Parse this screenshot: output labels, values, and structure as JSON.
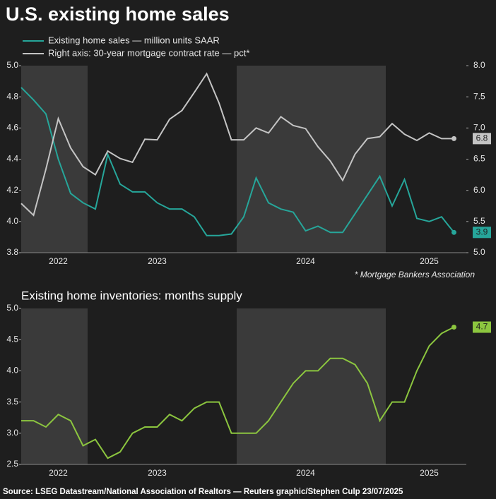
{
  "title": "U.S. existing home sales",
  "source": "Source: LSEG Datastream/National Association of Realtors  — Reuters graphic/Stephen Culp 23/07/2025",
  "chart_data": [
    {
      "type": "line",
      "legend": "top-left",
      "note": "* Mortgage Bankers Association",
      "categories": [
        null,
        null,
        null,
        "2022",
        null,
        null,
        null,
        null,
        null,
        null,
        null,
        "2023",
        null,
        null,
        null,
        null,
        null,
        null,
        null,
        null,
        null,
        null,
        null,
        "2024",
        null,
        null,
        null,
        null,
        null,
        null,
        null,
        null,
        null,
        "2025",
        null,
        null
      ],
      "ylim": [
        3.8,
        5.0
      ],
      "yticks": [
        3.8,
        {
          "value": 4,
          "label": "4.0"
        },
        4.2,
        4.4,
        4.6,
        4.8,
        {
          "value": 5,
          "label": "5.0"
        }
      ],
      "y2lim": [
        5,
        8
      ],
      "y2ticks": [
        {
          "value": 5,
          "label": "5.0"
        },
        5.5,
        {
          "value": 6,
          "label": "6.0"
        },
        6.5,
        {
          "value": 7,
          "label": "7.0"
        },
        7.5,
        {
          "value": 8,
          "label": "8.0"
        }
      ],
      "series": [
        {
          "name": "Existing home sales — million units SAAR",
          "color": "#26a69a",
          "values": [
            4.86,
            4.78,
            4.69,
            4.4,
            4.18,
            4.12,
            4.08,
            4.43,
            4.24,
            4.19,
            4.19,
            4.12,
            4.08,
            4.08,
            4.03,
            3.91,
            3.91,
            3.92,
            4.03,
            4.28,
            4.12,
            4.08,
            4.06,
            3.94,
            3.97,
            3.93,
            3.93,
            4.05,
            4.17,
            4.29,
            4.1,
            4.27,
            4.02,
            4.0,
            4.03,
            3.93
          ],
          "value_labels": [
            null,
            null,
            null,
            null,
            null,
            null,
            null,
            null,
            null,
            null,
            null,
            null,
            null,
            null,
            null,
            null,
            null,
            null,
            null,
            null,
            null,
            null,
            null,
            null,
            null,
            null,
            null,
            null,
            null,
            null,
            null,
            null,
            null,
            null,
            null,
            "3.9"
          ]
        },
        {
          "name": "Right axis: 30-year mortgage contract rate — pct*",
          "color": "#c4c4c4",
          "axis": "y2",
          "values": [
            5.79,
            5.6,
            6.34,
            7.15,
            6.68,
            6.38,
            6.25,
            6.63,
            6.51,
            6.45,
            6.82,
            6.81,
            7.14,
            7.28,
            7.57,
            7.87,
            7.4,
            6.81,
            6.81,
            7.0,
            6.92,
            7.18,
            7.04,
            6.99,
            6.7,
            6.47,
            6.16,
            6.58,
            6.83,
            6.86,
            7.07,
            6.9,
            6.8,
            6.92,
            6.83,
            6.83
          ],
          "value_labels": [
            null,
            null,
            null,
            null,
            null,
            null,
            null,
            null,
            null,
            null,
            null,
            null,
            null,
            null,
            null,
            null,
            null,
            null,
            null,
            null,
            null,
            null,
            null,
            null,
            null,
            null,
            null,
            null,
            null,
            null,
            null,
            null,
            null,
            null,
            null,
            "6.8"
          ]
        }
      ]
    },
    {
      "type": "line",
      "title": "Existing home inventories: months supply",
      "categories": [
        null,
        null,
        null,
        "2022",
        null,
        null,
        null,
        null,
        null,
        null,
        null,
        "2023",
        null,
        null,
        null,
        null,
        null,
        null,
        null,
        null,
        null,
        null,
        null,
        "2024",
        null,
        null,
        null,
        null,
        null,
        null,
        null,
        null,
        null,
        "2025",
        null,
        null
      ],
      "ylim": [
        2.5,
        5.0
      ],
      "yticks": [
        2.5,
        {
          "value": 3,
          "label": "3.0"
        },
        3.5,
        {
          "value": 4,
          "label": "4.0"
        },
        4.5,
        {
          "value": 5,
          "label": "5.0"
        }
      ],
      "series": [
        {
          "color": "#8cc63f",
          "values": [
            3.2,
            3.2,
            3.1,
            3.3,
            3.2,
            2.8,
            2.9,
            2.6,
            2.7,
            3.0,
            3.1,
            3.1,
            3.3,
            3.2,
            3.4,
            3.5,
            3.5,
            3.0,
            3.0,
            3.0,
            3.2,
            3.5,
            3.8,
            4.0,
            4.0,
            4.2,
            4.2,
            4.1,
            3.8,
            3.2,
            3.5,
            3.5,
            4.0,
            4.4,
            4.6,
            4.7
          ],
          "value_labels": [
            null,
            null,
            null,
            null,
            null,
            null,
            null,
            null,
            null,
            null,
            null,
            null,
            null,
            null,
            null,
            null,
            null,
            null,
            null,
            null,
            null,
            null,
            null,
            null,
            null,
            null,
            null,
            null,
            null,
            null,
            null,
            null,
            null,
            null,
            null,
            "4.7"
          ]
        }
      ]
    }
  ]
}
